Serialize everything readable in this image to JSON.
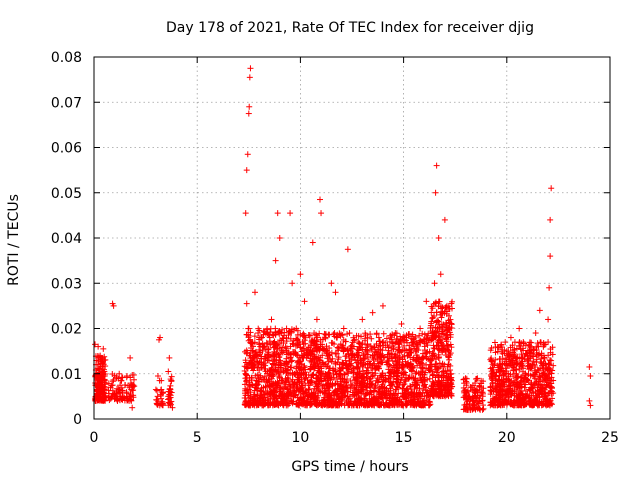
{
  "chart_data": {
    "type": "scatter",
    "title": "Day 178 of 2021, Rate Of TEC Index for receiver djig",
    "xlabel": "GPS time / hours",
    "ylabel": "ROTI / TECUs",
    "xlim": [
      0,
      25
    ],
    "ylim": [
      0,
      0.08
    ],
    "xticks": [
      0,
      5,
      10,
      15,
      20,
      25
    ],
    "xtick_labels": [
      "0",
      "5",
      "10",
      "15",
      "20",
      "25"
    ],
    "yticks": [
      0,
      0.01,
      0.02,
      0.03,
      0.04,
      0.05,
      0.06,
      0.07,
      0.08
    ],
    "ytick_labels": [
      "0",
      "0.01",
      "0.02",
      "0.03",
      "0.04",
      "0.05",
      "0.06",
      "0.07",
      "0.08"
    ],
    "grid": true,
    "marker": "+",
    "color": "#ff0000",
    "series": [
      {
        "name": "ROTI",
        "points": [
          [
            0.05,
            0.0165
          ],
          [
            0.1,
            0.012
          ],
          [
            0.15,
            0.0095
          ],
          [
            0.2,
            0.0075
          ],
          [
            0.25,
            0.011
          ],
          [
            0.3,
            0.014
          ],
          [
            0.35,
            0.009
          ],
          [
            0.4,
            0.006
          ],
          [
            0.45,
            0.0105
          ],
          [
            0.5,
            0.013
          ],
          [
            0.1,
            0.005
          ],
          [
            0.3,
            0.0045
          ],
          [
            0.4,
            0.008
          ],
          [
            0.2,
            0.016
          ],
          [
            0.45,
            0.0155
          ],
          [
            0.9,
            0.0255
          ],
          [
            0.95,
            0.025
          ],
          [
            0.8,
            0.007
          ],
          [
            1.0,
            0.0055
          ],
          [
            1.1,
            0.009
          ],
          [
            1.2,
            0.006
          ],
          [
            1.3,
            0.0085
          ],
          [
            1.4,
            0.005
          ],
          [
            1.5,
            0.0075
          ],
          [
            1.6,
            0.0095
          ],
          [
            1.7,
            0.004
          ],
          [
            1.8,
            0.0065
          ],
          [
            1.75,
            0.0135
          ],
          [
            1.85,
            0.0025
          ],
          [
            1.9,
            0.0075
          ],
          [
            3.0,
            0.0065
          ],
          [
            3.1,
            0.0095
          ],
          [
            3.15,
            0.0175
          ],
          [
            3.2,
            0.018
          ],
          [
            3.25,
            0.0045
          ],
          [
            3.3,
            0.0035
          ],
          [
            3.6,
            0.0105
          ],
          [
            3.65,
            0.0135
          ],
          [
            3.7,
            0.0065
          ],
          [
            3.75,
            0.0085
          ],
          [
            3.8,
            0.0025
          ],
          [
            7.35,
            0.0455
          ],
          [
            7.4,
            0.055
          ],
          [
            7.45,
            0.0585
          ],
          [
            7.5,
            0.0675
          ],
          [
            7.52,
            0.069
          ],
          [
            7.55,
            0.0755
          ],
          [
            7.58,
            0.0775
          ],
          [
            7.4,
            0.0255
          ],
          [
            7.5,
            0.02
          ],
          [
            7.45,
            0.012
          ],
          [
            7.55,
            0.008
          ],
          [
            7.6,
            0.004
          ],
          [
            7.8,
            0.028
          ],
          [
            8.0,
            0.018
          ],
          [
            8.2,
            0.012
          ],
          [
            8.4,
            0.008
          ],
          [
            8.6,
            0.022
          ],
          [
            8.8,
            0.035
          ],
          [
            8.9,
            0.0455
          ],
          [
            9.0,
            0.04
          ],
          [
            9.2,
            0.015
          ],
          [
            9.4,
            0.009
          ],
          [
            9.5,
            0.0455
          ],
          [
            9.6,
            0.03
          ],
          [
            9.8,
            0.02
          ],
          [
            10.0,
            0.032
          ],
          [
            10.2,
            0.026
          ],
          [
            10.4,
            0.014
          ],
          [
            10.6,
            0.039
          ],
          [
            10.8,
            0.022
          ],
          [
            10.95,
            0.0485
          ],
          [
            11.0,
            0.0455
          ],
          [
            11.2,
            0.018
          ],
          [
            11.5,
            0.03
          ],
          [
            11.7,
            0.028
          ],
          [
            11.9,
            0.012
          ],
          [
            12.1,
            0.02
          ],
          [
            12.3,
            0.0375
          ],
          [
            12.5,
            0.014
          ],
          [
            12.8,
            0.017
          ],
          [
            13.0,
            0.022
          ],
          [
            13.2,
            0.01
          ],
          [
            13.5,
            0.0235
          ],
          [
            13.8,
            0.018
          ],
          [
            14.0,
            0.025
          ],
          [
            14.3,
            0.012
          ],
          [
            14.6,
            0.019
          ],
          [
            14.9,
            0.021
          ],
          [
            15.2,
            0.014
          ],
          [
            15.5,
            0.009
          ],
          [
            15.8,
            0.02
          ],
          [
            16.1,
            0.026
          ],
          [
            16.3,
            0.012
          ],
          [
            16.5,
            0.03
          ],
          [
            16.55,
            0.05
          ],
          [
            16.6,
            0.056
          ],
          [
            16.7,
            0.04
          ],
          [
            16.8,
            0.032
          ],
          [
            17.0,
            0.044
          ],
          [
            17.1,
            0.025
          ],
          [
            17.2,
            0.015
          ],
          [
            17.3,
            0.01
          ],
          [
            16.9,
            0.008
          ],
          [
            18.0,
            0.009
          ],
          [
            18.2,
            0.005
          ],
          [
            18.4,
            0.003
          ],
          [
            18.6,
            0.006
          ],
          [
            18.8,
            0.004
          ],
          [
            19.3,
            0.01
          ],
          [
            19.5,
            0.006
          ],
          [
            19.8,
            0.012
          ],
          [
            20.0,
            0.015
          ],
          [
            20.2,
            0.018
          ],
          [
            20.4,
            0.01
          ],
          [
            20.6,
            0.02
          ],
          [
            20.8,
            0.017
          ],
          [
            21.0,
            0.013
          ],
          [
            21.2,
            0.008
          ],
          [
            21.4,
            0.019
          ],
          [
            21.6,
            0.024
          ],
          [
            21.8,
            0.014
          ],
          [
            21.9,
            0.009
          ],
          [
            22.0,
            0.022
          ],
          [
            22.05,
            0.029
          ],
          [
            22.1,
            0.044
          ],
          [
            22.15,
            0.051
          ],
          [
            22.1,
            0.036
          ],
          [
            22.0,
            0.017
          ],
          [
            22.05,
            0.012
          ],
          [
            22.1,
            0.007
          ],
          [
            24.0,
            0.0115
          ],
          [
            24.05,
            0.0095
          ],
          [
            24.0,
            0.004
          ],
          [
            24.05,
            0.003
          ]
        ]
      }
    ],
    "bands": [
      {
        "x0": 0.05,
        "x1": 0.55,
        "y0": 0.004,
        "y1": 0.014,
        "n": 180,
        "seed": 11
      },
      {
        "x0": 0.7,
        "x1": 1.95,
        "y0": 0.004,
        "y1": 0.01,
        "n": 90,
        "seed": 12
      },
      {
        "x0": 3.0,
        "x1": 3.35,
        "y0": 0.003,
        "y1": 0.01,
        "n": 25,
        "seed": 13
      },
      {
        "x0": 3.55,
        "x1": 3.8,
        "y0": 0.003,
        "y1": 0.011,
        "n": 25,
        "seed": 14
      },
      {
        "x0": 7.3,
        "x1": 10.0,
        "y0": 0.003,
        "y1": 0.02,
        "n": 700,
        "seed": 21
      },
      {
        "x0": 10.0,
        "x1": 13.0,
        "y0": 0.003,
        "y1": 0.019,
        "n": 750,
        "seed": 22
      },
      {
        "x0": 13.0,
        "x1": 16.3,
        "y0": 0.003,
        "y1": 0.019,
        "n": 800,
        "seed": 23
      },
      {
        "x0": 16.3,
        "x1": 17.35,
        "y0": 0.005,
        "y1": 0.026,
        "n": 330,
        "seed": 24
      },
      {
        "x0": 17.9,
        "x1": 18.9,
        "y0": 0.002,
        "y1": 0.009,
        "n": 110,
        "seed": 25
      },
      {
        "x0": 19.2,
        "x1": 21.9,
        "y0": 0.003,
        "y1": 0.017,
        "n": 650,
        "seed": 26
      },
      {
        "x0": 21.9,
        "x1": 22.25,
        "y0": 0.003,
        "y1": 0.016,
        "n": 70,
        "seed": 27
      }
    ]
  }
}
